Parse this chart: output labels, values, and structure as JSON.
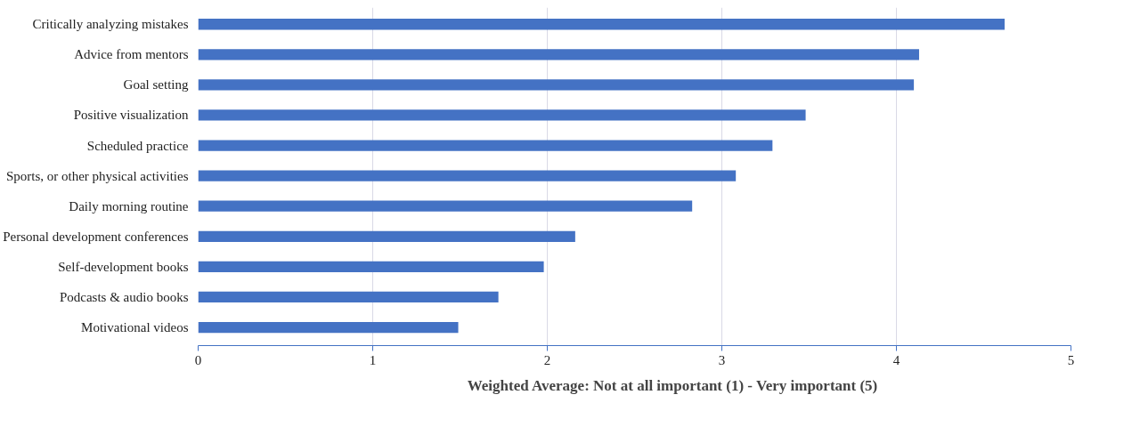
{
  "chart_data": {
    "type": "bar",
    "orientation": "horizontal",
    "categories": [
      "Critically analyzing mistakes",
      "Advice from mentors",
      "Goal setting",
      "Positive visualization",
      "Scheduled practice",
      "Sports, or other physical activities",
      "Daily morning routine",
      "Personal development conferences",
      "Self-development books",
      "Podcasts & audio books",
      "Motivational videos"
    ],
    "series": [
      {
        "name": "Weighted Average: Not at all important (1) - Very important (5)",
        "color": "#4472c4",
        "values": [
          4.62,
          4.13,
          4.1,
          3.48,
          3.29,
          3.08,
          2.83,
          2.16,
          1.98,
          1.72,
          1.49
        ]
      }
    ],
    "xlim": [
      0,
      5
    ],
    "xticks": [
      0,
      1,
      2,
      3,
      4,
      5
    ],
    "grid": "x",
    "legend": "bottom"
  }
}
